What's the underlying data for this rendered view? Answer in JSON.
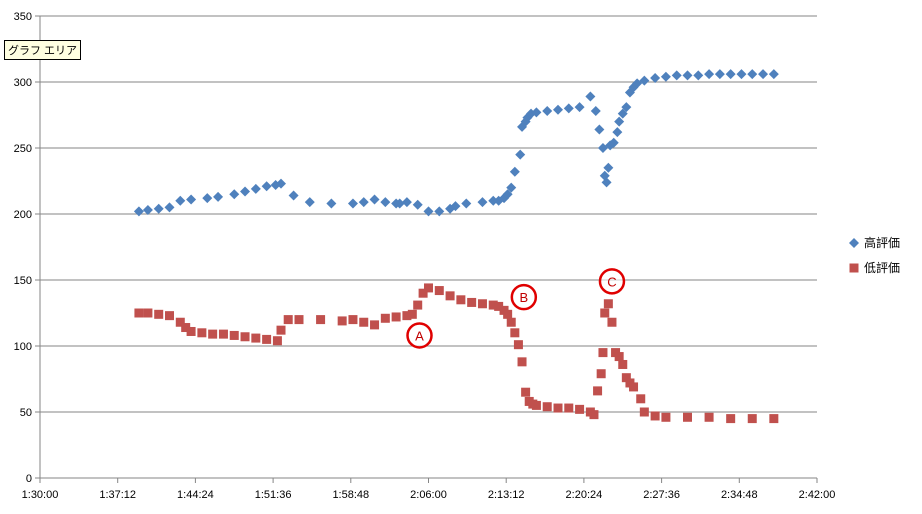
{
  "tooltip": "グラフ エリア",
  "chart_data": {
    "type": "scatter",
    "title": "",
    "xlabel": "",
    "ylabel": "",
    "ylim": [
      0,
      350
    ],
    "yticks": [
      0,
      50,
      100,
      150,
      200,
      250,
      300,
      350
    ],
    "xlim_seconds": [
      5400,
      9720
    ],
    "xticks": [
      "1:30:00",
      "1:37:12",
      "1:44:24",
      "1:51:36",
      "1:58:48",
      "2:06:00",
      "2:13:12",
      "2:20:24",
      "2:27:36",
      "2:34:48",
      "2:42:00"
    ],
    "grid": "horizontal",
    "legend_position": "right",
    "series": [
      {
        "name": "高評価",
        "marker": "diamond",
        "color": "#4f81bd",
        "x": [
          "1:39:10",
          "1:40:00",
          "1:41:00",
          "1:42:00",
          "1:43:00",
          "1:44:00",
          "1:45:30",
          "1:46:30",
          "1:48:00",
          "1:49:00",
          "1:50:00",
          "1:51:00",
          "1:51:50",
          "1:52:20",
          "1:53:30",
          "1:55:00",
          "1:57:00",
          "1:59:00",
          "2:00:00",
          "2:01:00",
          "2:02:00",
          "2:03:00",
          "2:03:20",
          "2:04:00",
          "2:05:00",
          "2:06:00",
          "2:07:00",
          "2:08:00",
          "2:08:30",
          "2:09:30",
          "2:11:00",
          "2:12:00",
          "2:12:30",
          "2:13:00",
          "2:13:20",
          "2:13:40",
          "2:14:00",
          "2:14:30",
          "2:14:40",
          "2:15:00",
          "2:15:10",
          "2:15:30",
          "2:16:00",
          "2:17:00",
          "2:18:00",
          "2:19:00",
          "2:20:00",
          "2:21:00",
          "2:21:30",
          "2:21:50",
          "2:22:10",
          "2:22:20",
          "2:22:30",
          "2:22:40",
          "2:22:50",
          "2:23:10",
          "2:23:30",
          "2:23:40",
          "2:24:00",
          "2:24:20",
          "2:24:40",
          "2:25:00",
          "2:25:20",
          "2:26:00",
          "2:27:00",
          "2:28:00",
          "2:29:00",
          "2:30:00",
          "2:31:00",
          "2:32:00",
          "2:33:00",
          "2:34:00",
          "2:35:00",
          "2:36:00",
          "2:37:00",
          "2:38:00"
        ],
        "y": [
          202,
          203,
          204,
          205,
          210,
          211,
          212,
          213,
          215,
          217,
          219,
          221,
          222,
          223,
          214,
          209,
          208,
          208,
          209,
          211,
          209,
          208,
          208,
          209,
          207,
          202,
          202,
          204,
          206,
          208,
          209,
          210,
          210,
          212,
          215,
          220,
          232,
          245,
          266,
          270,
          273,
          276,
          277,
          278,
          279,
          280,
          281,
          289,
          278,
          264,
          250,
          229,
          224,
          235,
          252,
          254,
          262,
          270,
          276,
          281,
          292,
          296,
          299,
          301,
          303,
          304,
          305,
          305,
          305,
          306,
          306,
          306,
          306,
          306,
          306,
          306
        ]
      },
      {
        "name": "低評価",
        "marker": "square",
        "color": "#c0504d",
        "x": [
          "1:39:10",
          "1:40:00",
          "1:41:00",
          "1:42:00",
          "1:43:00",
          "1:43:30",
          "1:44:00",
          "1:45:00",
          "1:46:00",
          "1:47:00",
          "1:48:00",
          "1:49:00",
          "1:50:00",
          "1:51:00",
          "1:52:00",
          "1:52:20",
          "1:53:00",
          "1:54:00",
          "1:56:00",
          "1:58:00",
          "1:59:00",
          "2:00:00",
          "2:01:00",
          "2:02:00",
          "2:03:00",
          "2:04:00",
          "2:04:30",
          "2:05:00",
          "2:05:30",
          "2:06:00",
          "2:07:00",
          "2:08:00",
          "2:09:00",
          "2:10:00",
          "2:11:00",
          "2:12:00",
          "2:12:30",
          "2:13:00",
          "2:13:20",
          "2:13:40",
          "2:14:00",
          "2:14:20",
          "2:14:40",
          "2:15:00",
          "2:15:20",
          "2:15:40",
          "2:16:00",
          "2:17:00",
          "2:18:00",
          "2:19:00",
          "2:20:00",
          "2:21:00",
          "2:21:20",
          "2:21:40",
          "2:22:00",
          "2:22:10",
          "2:22:20",
          "2:22:40",
          "2:23:00",
          "2:23:20",
          "2:23:40",
          "2:24:00",
          "2:24:20",
          "2:24:40",
          "2:25:00",
          "2:25:40",
          "2:26:00",
          "2:27:00",
          "2:28:00",
          "2:30:00",
          "2:32:00",
          "2:34:00",
          "2:36:00",
          "2:38:00"
        ],
        "y": [
          125,
          125,
          124,
          123,
          118,
          114,
          111,
          110,
          109,
          109,
          108,
          107,
          106,
          105,
          104,
          112,
          120,
          120,
          120,
          119,
          120,
          118,
          116,
          121,
          122,
          123,
          124,
          131,
          140,
          144,
          142,
          138,
          135,
          133,
          132,
          131,
          130,
          127,
          124,
          118,
          110,
          101,
          88,
          65,
          58,
          56,
          55,
          54,
          53,
          53,
          52,
          50,
          48,
          66,
          79,
          95,
          125,
          132,
          118,
          95,
          92,
          86,
          76,
          72,
          69,
          60,
          50,
          47,
          46,
          46,
          46,
          45,
          45,
          45
        ]
      }
    ],
    "annotations": [
      {
        "label": "A",
        "x": "2:05:10",
        "y": 108
      },
      {
        "label": "B",
        "x": "2:14:50",
        "y": 137
      },
      {
        "label": "C",
        "x": "2:23:00",
        "y": 149
      }
    ]
  }
}
